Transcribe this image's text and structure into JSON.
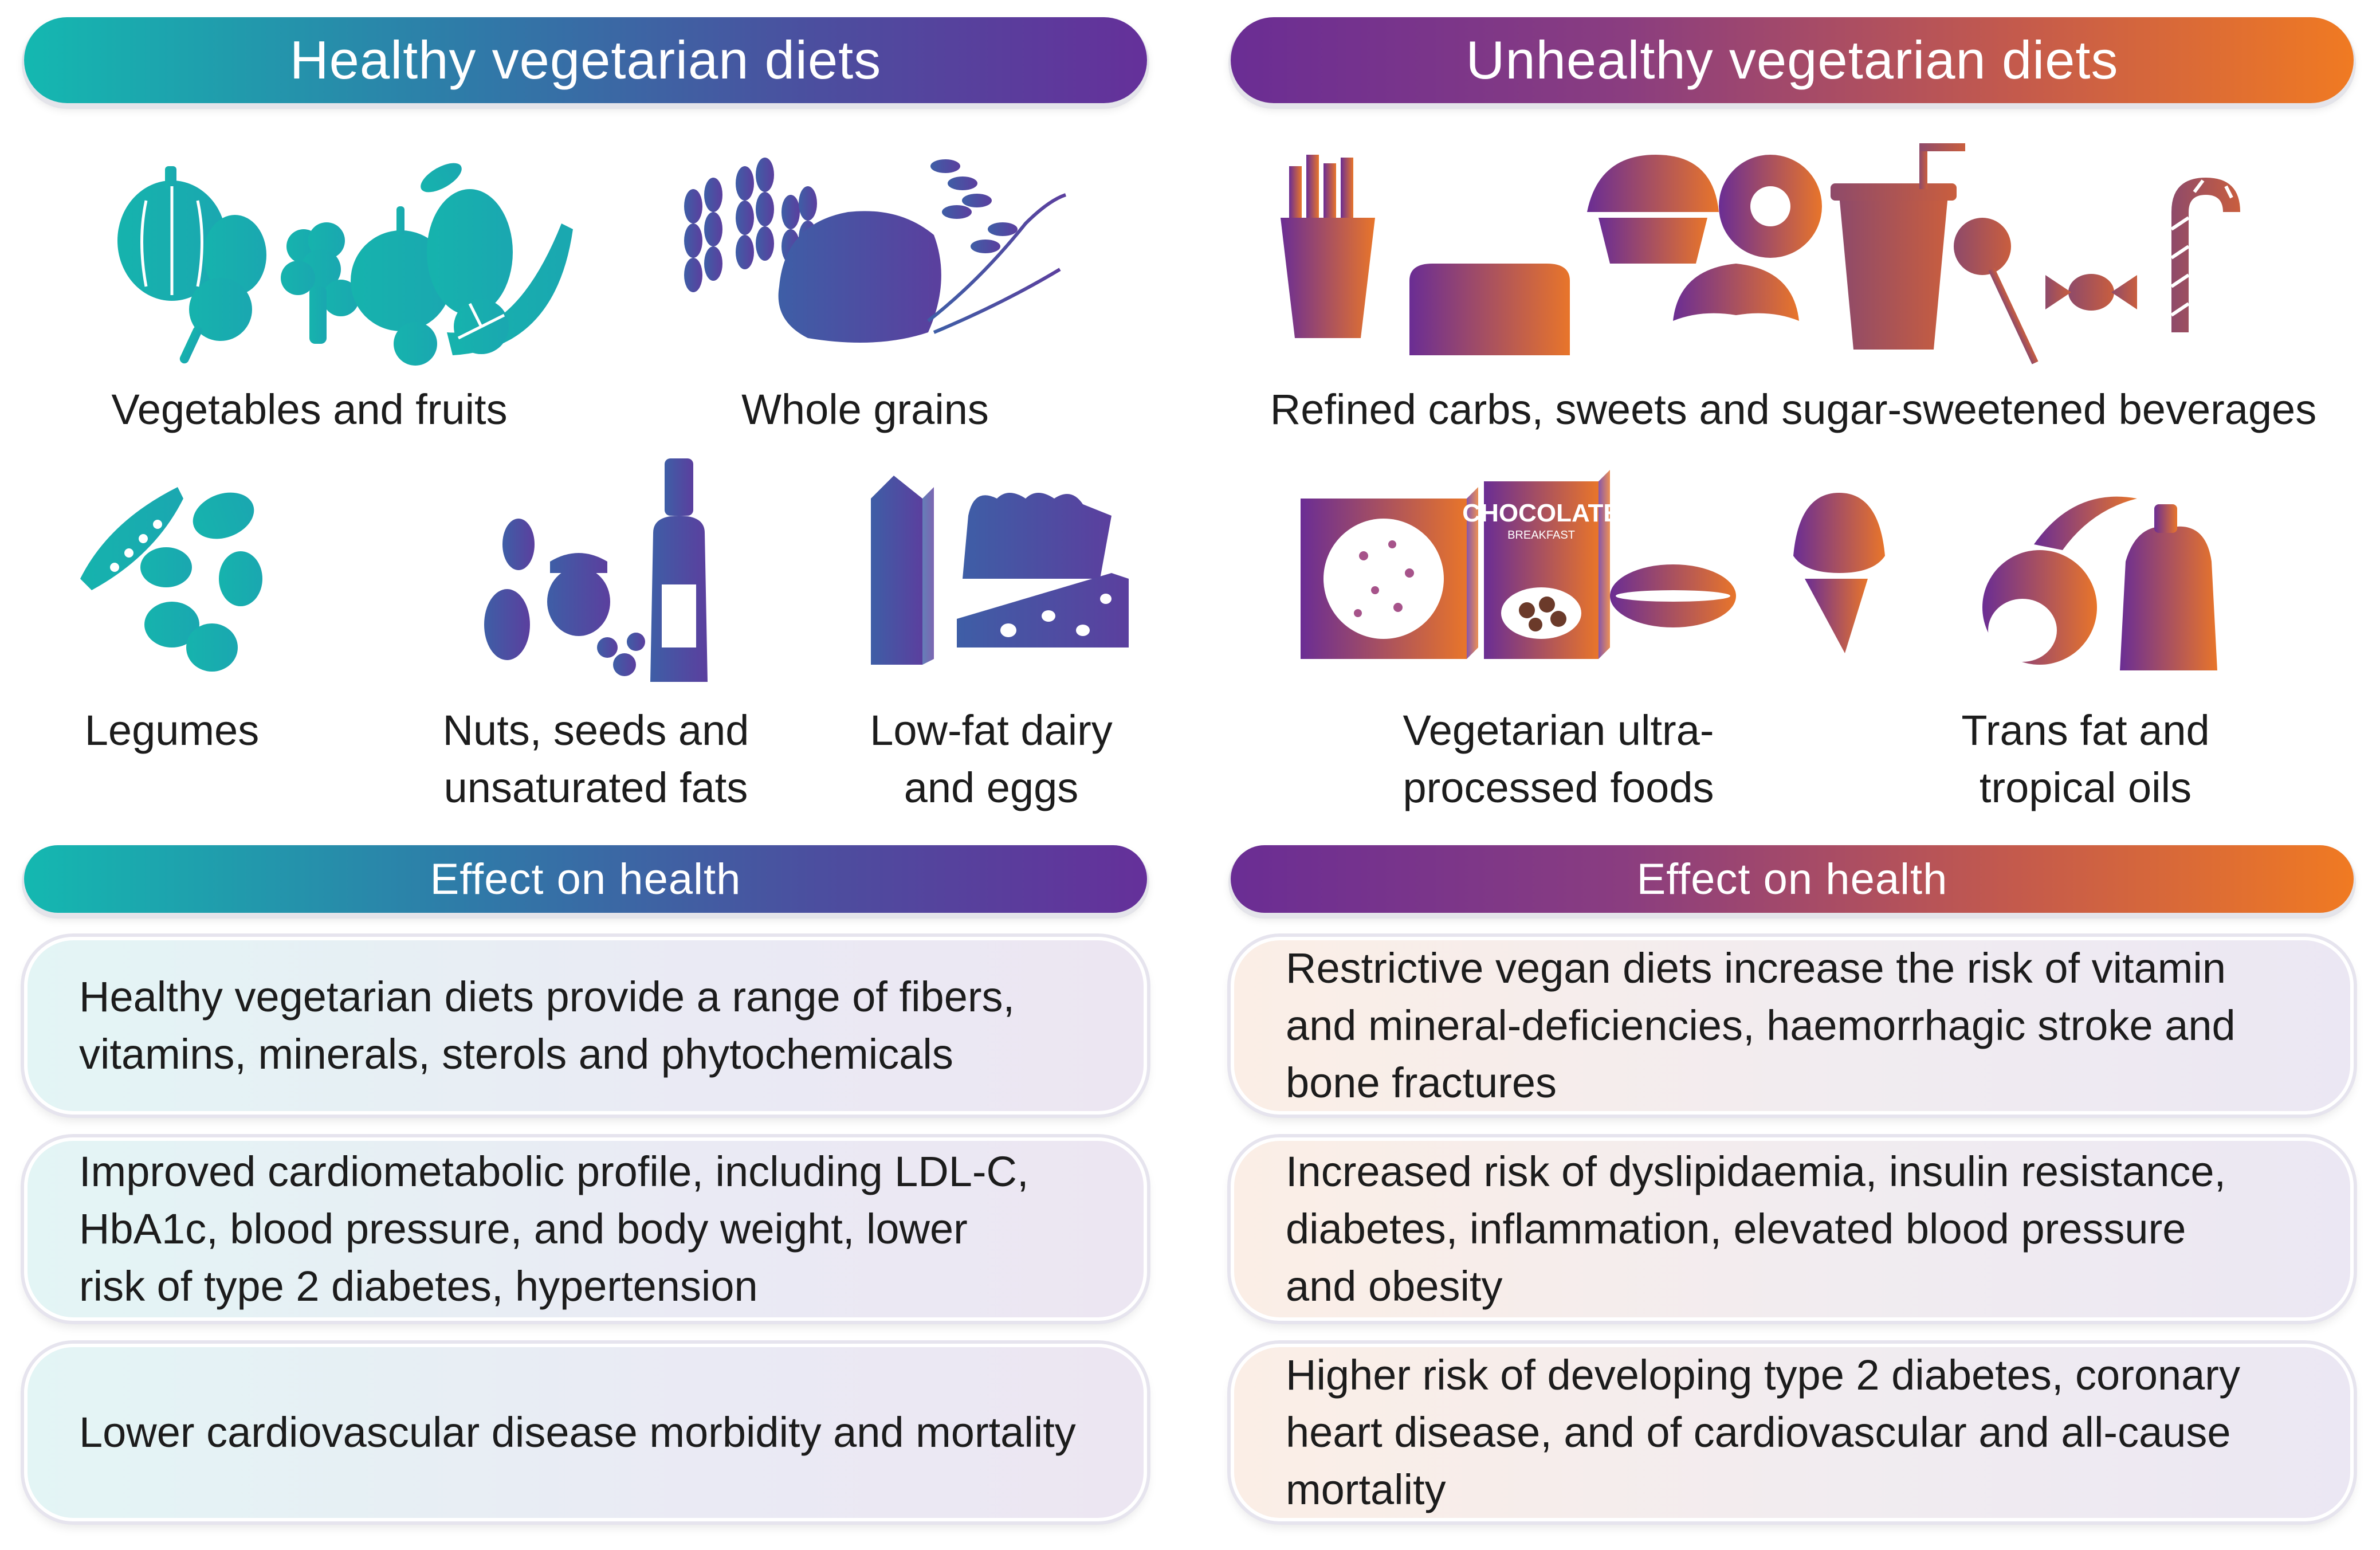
{
  "healthy": {
    "title": "Healthy vegetarian diets",
    "groups": [
      {
        "label": "Vegetables and fruits",
        "icon": "vegetables-fruits-icon"
      },
      {
        "label": "Whole grains",
        "icon": "whole-grains-icon"
      },
      {
        "label": "Legumes",
        "icon": "legumes-icon"
      },
      {
        "label_line1": "Nuts, seeds and",
        "label_line2": "unsaturated fats",
        "icon": "nuts-oil-icon"
      },
      {
        "label_line1": "Low-fat dairy",
        "label_line2": "and eggs",
        "icon": "dairy-eggs-icon"
      }
    ],
    "effect_title": "Effect on health",
    "effects": [
      {
        "line1": "Healthy vegetarian diets provide a range of fibers,",
        "line2": "vitamins, minerals, sterols and phytochemicals"
      },
      {
        "line1": "Improved cardiometabolic profile, including LDL-C,",
        "line2": "HbA1c, blood pressure, and body weight, lower",
        "line3": "risk of type 2 diabetes, hypertension"
      },
      {
        "line1": "Lower cardiovascular disease morbidity and mortality"
      }
    ]
  },
  "unhealthy": {
    "title": "Unhealthy vegetarian diets",
    "groups": [
      {
        "label": "Refined carbs, sweets and sugar-sweetened beverages",
        "icon": "sweets-beverages-icon"
      },
      {
        "label_line1": "Vegetarian ultra-",
        "label_line2": "processed foods",
        "icon": "processed-foods-icon",
        "box_text1": "CHOCOLATE",
        "box_text2": "BREAKFAST"
      },
      {
        "label_line1": "Trans fat and",
        "label_line2": "tropical oils",
        "icon": "tropical-oils-icon"
      }
    ],
    "effect_title": "Effect on health",
    "effects": [
      {
        "line1": "Restrictive vegan diets increase the risk of vitamin",
        "line2": "and mineral-deficiencies, haemorrhagic stroke and",
        "line3": "bone fractures"
      },
      {
        "line1": "Increased risk of dyslipidaemia, insulin resistance,",
        "line2": "diabetes, inflammation, elevated blood pressure",
        "line3": "and obesity"
      },
      {
        "line1": "Higher risk of developing type 2 diabetes, coronary",
        "line2": "heart disease, and of cardiovascular and all-cause",
        "line3": "mortality"
      }
    ]
  },
  "colors": {
    "teal": "#17b3ad",
    "indigo": "#4b4f9f",
    "purple": "#6a2d94",
    "orange": "#f07a22",
    "brown": "#9a4a5a"
  }
}
